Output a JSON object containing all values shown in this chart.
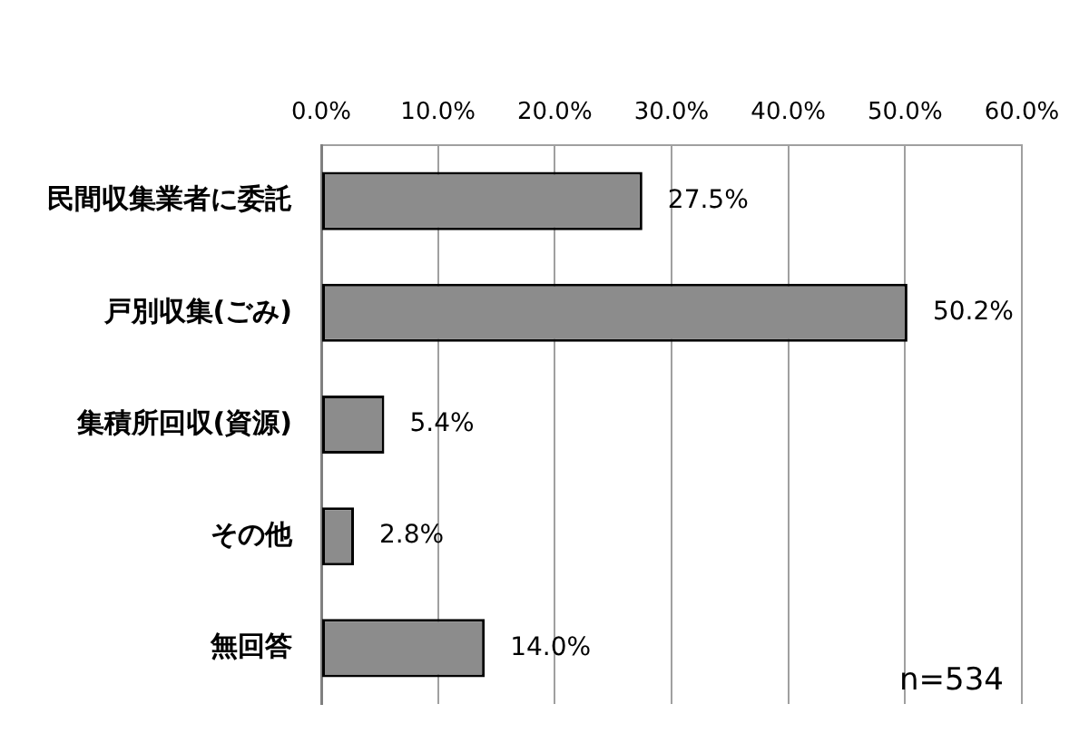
{
  "chart_data": {
    "type": "bar",
    "orientation": "horizontal",
    "categories": [
      "民間収集業者に委託",
      "戸別収集(ごみ)",
      "集積所回収(資源)",
      "その他",
      "無回答"
    ],
    "values": [
      27.5,
      50.2,
      5.4,
      2.8,
      14.0
    ],
    "value_labels": [
      "27.5%",
      "50.2%",
      "5.4%",
      "2.8%",
      "14.0%"
    ],
    "color": "#8c8c8c",
    "xlim": [
      0,
      60
    ],
    "xticks": [
      {
        "value": 0,
        "label": "0.0%"
      },
      {
        "value": 10,
        "label": "10.0%"
      },
      {
        "value": 20,
        "label": "20.0%"
      },
      {
        "value": 30,
        "label": "30.0%"
      },
      {
        "value": 40,
        "label": "40.0%"
      },
      {
        "value": 50,
        "label": "50.0%"
      },
      {
        "value": 60,
        "label": "60.0%"
      }
    ],
    "grid": "x",
    "annotations": [
      "n=534"
    ]
  }
}
